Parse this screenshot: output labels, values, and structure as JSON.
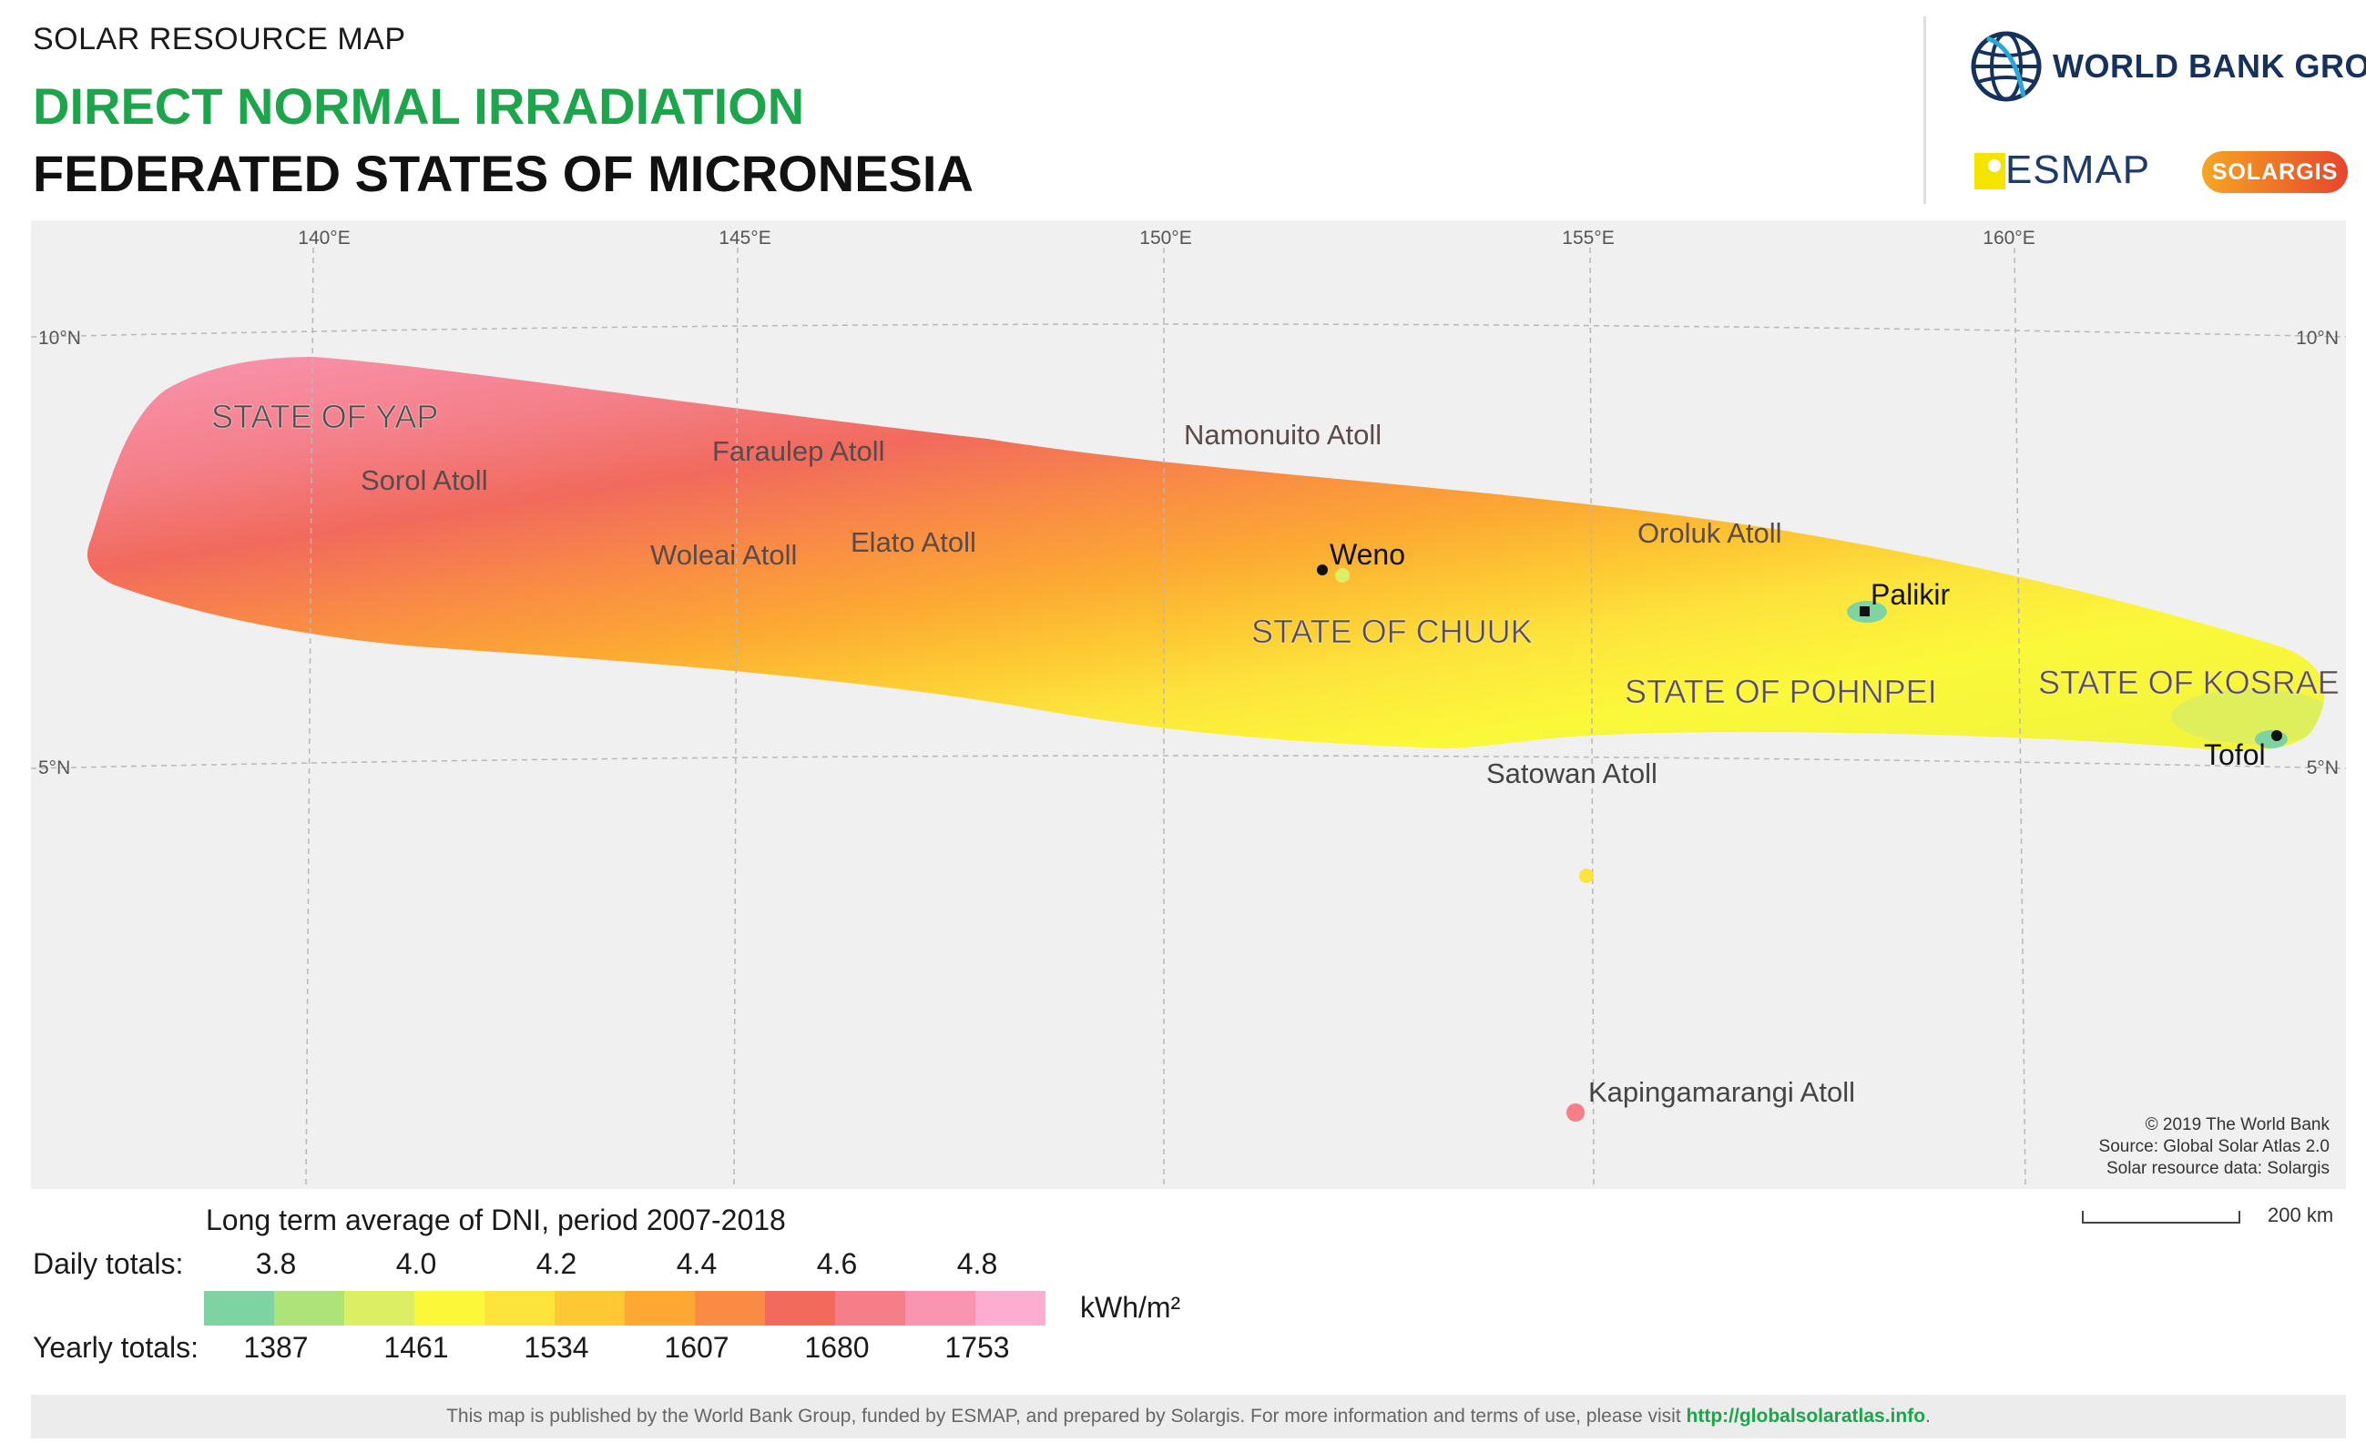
{
  "header": {
    "subtitle": "SOLAR RESOURCE MAP",
    "title": "DIRECT NORMAL IRRADIATION",
    "country": "FEDERATED STATES OF MICRONESIA"
  },
  "logos": {
    "world_bank": "WORLD BANK GROUP",
    "esmap": "ESMAP",
    "solargis": "SOLARGIS"
  },
  "map": {
    "longitude_labels": [
      "140°E",
      "145°E",
      "150°E",
      "155°E",
      "160°E"
    ],
    "latitude_labels": [
      "10°N",
      "5°N"
    ],
    "states": [
      "STATE OF YAP",
      "STATE OF CHUUK",
      "STATE OF POHNPEI",
      "STATE OF KOSRAE"
    ],
    "places": [
      "Sorol Atoll",
      "Faraulep Atoll",
      "Namonuito Atoll",
      "Woleai Atoll",
      "Elato Atoll",
      "Oroluk Atoll",
      "Satowan Atoll",
      "Kapingamarangi Atoll"
    ],
    "cities": [
      "Weno",
      "Palikir",
      "Tofol"
    ],
    "credit": [
      "© 2019 The World Bank",
      "Source: Global Solar Atlas 2.0",
      "Solar resource data: Solargis"
    ],
    "scale_label": "200 km"
  },
  "legend": {
    "title": "Long term average of DNI, period 2007-2018",
    "daily_label": "Daily totals:",
    "yearly_label": "Yearly totals:",
    "daily_ticks": [
      "3.8",
      "4.0",
      "4.2",
      "4.4",
      "4.6",
      "4.8"
    ],
    "yearly_ticks": [
      "1387",
      "1461",
      "1534",
      "1607",
      "1680",
      "1753"
    ],
    "unit": "kWh/m²",
    "colors": [
      "#7ed3a3",
      "#aee37a",
      "#dcee63",
      "#fbf83a",
      "#fde43c",
      "#fdc833",
      "#fca833",
      "#f98b45",
      "#f16a5c",
      "#f47f88",
      "#f995b1",
      "#fdaed0"
    ]
  },
  "footer": {
    "text": "This map is published by the World Bank Group, funded by ESMAP, and prepared by Solargis. For more information and terms of use, please visit",
    "link": "http://globalsolaratlas.info",
    "end": "."
  }
}
